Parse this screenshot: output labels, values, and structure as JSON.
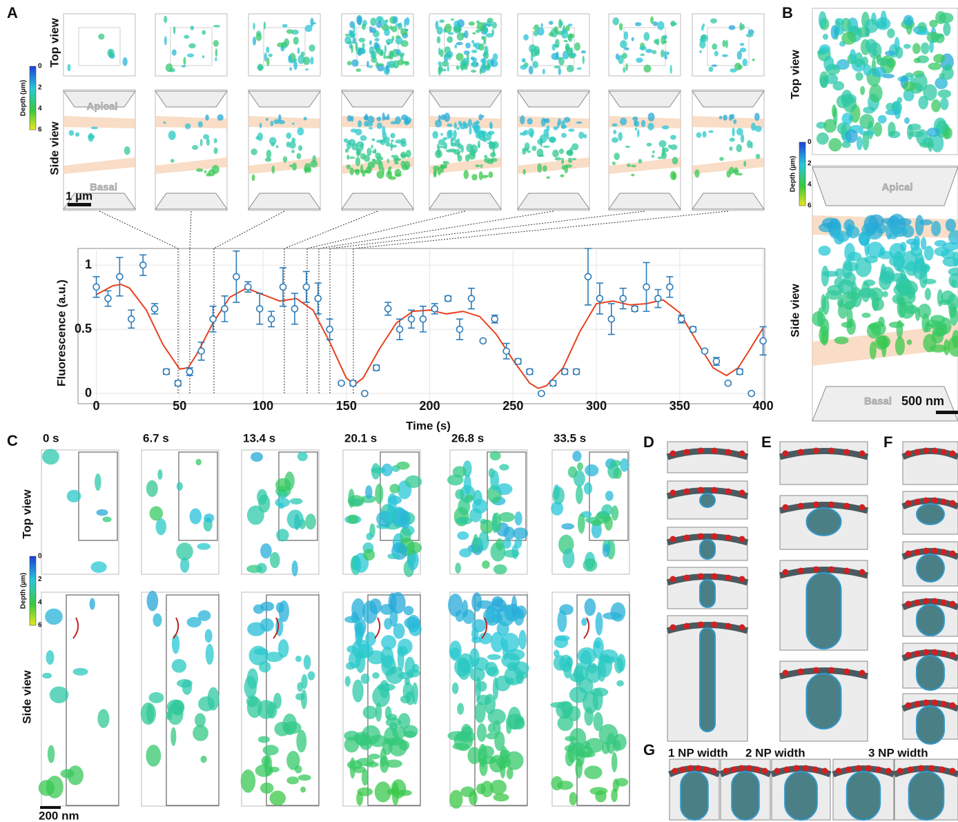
{
  "chart_data": {
    "type": "scatter",
    "x_label": "Time (s)",
    "y_label": "Fluorescence (a.u.)",
    "x": [
      0,
      7,
      14,
      21,
      28,
      35,
      42,
      49,
      56,
      63,
      70,
      77,
      84,
      91,
      98,
      105,
      112,
      119,
      126,
      133,
      140,
      147,
      154,
      161,
      168,
      175,
      182,
      189,
      196,
      203,
      211,
      218,
      225,
      232,
      239,
      246,
      253,
      260,
      267,
      274,
      281,
      288,
      295,
      302,
      309,
      316,
      323,
      330,
      337,
      344,
      351,
      358,
      365,
      372,
      379,
      386,
      393,
      400
    ],
    "series": [
      {
        "color": "#2b7bb9",
        "values": [
          0.83,
          0.74,
          0.91,
          0.58,
          1.0,
          0.66,
          0.17,
          0.08,
          0.17,
          0.33,
          0.58,
          0.66,
          0.91,
          0.83,
          0.66,
          0.58,
          0.83,
          0.66,
          0.83,
          0.74,
          0.5,
          0.08,
          0.08,
          0.0,
          0.2,
          0.66,
          0.5,
          0.58,
          0.58,
          0.66,
          0.74,
          0.5,
          0.74,
          0.41,
          0.58,
          0.33,
          0.25,
          0.17,
          0.0,
          0.08,
          0.17,
          0.17,
          0.91,
          0.74,
          0.58,
          0.74,
          0.66,
          0.83,
          0.74,
          0.83,
          0.58,
          0.5,
          0.33,
          0.25,
          0.08,
          0.17,
          0.0,
          0.41
        ],
        "errors": [
          0.08,
          0.06,
          0.15,
          0.07,
          0.08,
          0.04,
          0.02,
          0.02,
          0.03,
          0.07,
          0.1,
          0.1,
          0.2,
          0.04,
          0.12,
          0.06,
          0.15,
          0.12,
          0.12,
          0.12,
          0.08,
          0.01,
          0.02,
          0.01,
          0.02,
          0.05,
          0.08,
          0.07,
          0.1,
          0.04,
          0.02,
          0.08,
          0.08,
          0.01,
          0.03,
          0.06,
          0.02,
          0.02,
          0.01,
          0.02,
          0.02,
          0.02,
          0.22,
          0.12,
          0.12,
          0.08,
          0.02,
          0.19,
          0.07,
          0.08,
          0.03,
          0.02,
          0.01,
          0.03,
          0.01,
          0.02,
          0.01,
          0.11
        ]
      }
    ],
    "fit": {
      "color": "#e8401c",
      "x": [
        0,
        10,
        15,
        20,
        30,
        40,
        50,
        55,
        60,
        70,
        80,
        90,
        100,
        110,
        120,
        130,
        140,
        150,
        155,
        160,
        170,
        180,
        190,
        200,
        210,
        220,
        230,
        240,
        250,
        260,
        265,
        270,
        280,
        290,
        300,
        310,
        320,
        330,
        340,
        350,
        360,
        370,
        378,
        385,
        390,
        400
      ],
      "values": [
        0.77,
        0.84,
        0.85,
        0.82,
        0.65,
        0.38,
        0.19,
        0.2,
        0.3,
        0.55,
        0.75,
        0.82,
        0.77,
        0.72,
        0.74,
        0.65,
        0.4,
        0.12,
        0.07,
        0.12,
        0.35,
        0.55,
        0.64,
        0.65,
        0.62,
        0.64,
        0.6,
        0.46,
        0.26,
        0.08,
        0.04,
        0.06,
        0.2,
        0.48,
        0.7,
        0.72,
        0.69,
        0.7,
        0.73,
        0.63,
        0.41,
        0.2,
        0.14,
        0.2,
        0.3,
        0.51
      ]
    },
    "xlim": [
      -11,
      401
    ],
    "ylim": [
      -0.08,
      1.13
    ],
    "xticks": [
      0,
      50,
      100,
      150,
      200,
      250,
      300,
      350,
      400
    ],
    "yticks": [
      0,
      0.5,
      1
    ],
    "grid": true
  },
  "figure": {
    "panel_letters": [
      "A",
      "B",
      "C",
      "D",
      "E",
      "F",
      "G"
    ],
    "top_view": "Top view",
    "side_view": "Side view",
    "apical": "Apical",
    "basal": "Basal",
    "colorbar_title": "Depth (µm)",
    "colorbar_ticks": [
      0,
      2,
      4,
      6
    ],
    "scale_a": "1 µm",
    "scale_b": "500 nm",
    "scale_c": "200 nm",
    "times": [
      "0 s",
      "6.7 s",
      "13.4 s",
      "20.1 s",
      "26.8 s",
      "33.5 s"
    ],
    "np_widths": [
      "1 NP width",
      "2 NP width",
      "3 NP width"
    ]
  }
}
